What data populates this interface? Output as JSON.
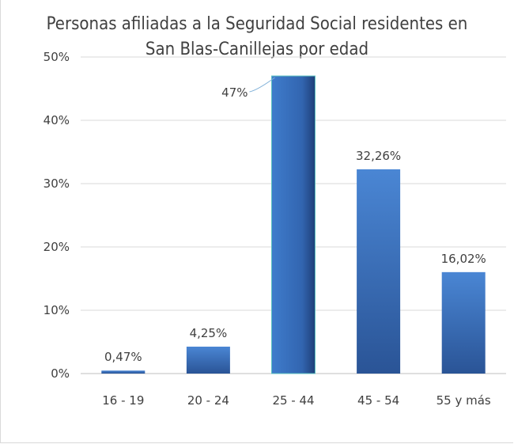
{
  "chart_data": {
    "type": "bar",
    "title_lines": [
      "Personas afiliadas a la Seguridad Social residentes en",
      "San Blas-Canillejas por edad"
    ],
    "categories": [
      "16 - 19",
      "20 - 24",
      "25 - 44",
      "45 - 54",
      "55 y más"
    ],
    "values": [
      0.47,
      4.25,
      47.0,
      32.26,
      16.02
    ],
    "data_labels": [
      "0,47%",
      "4,25%",
      "47%",
      "32,26%",
      "16,02%"
    ],
    "y_ticks": [
      "0%",
      "10%",
      "20%",
      "30%",
      "40%",
      "50%"
    ],
    "ylim": [
      0,
      50
    ],
    "grid": true,
    "legend": "none",
    "colors": {
      "bar_light": "#4a86d4",
      "bar_dark": "#2a5496",
      "grid": "#d9d9d9",
      "text": "#404040"
    }
  }
}
